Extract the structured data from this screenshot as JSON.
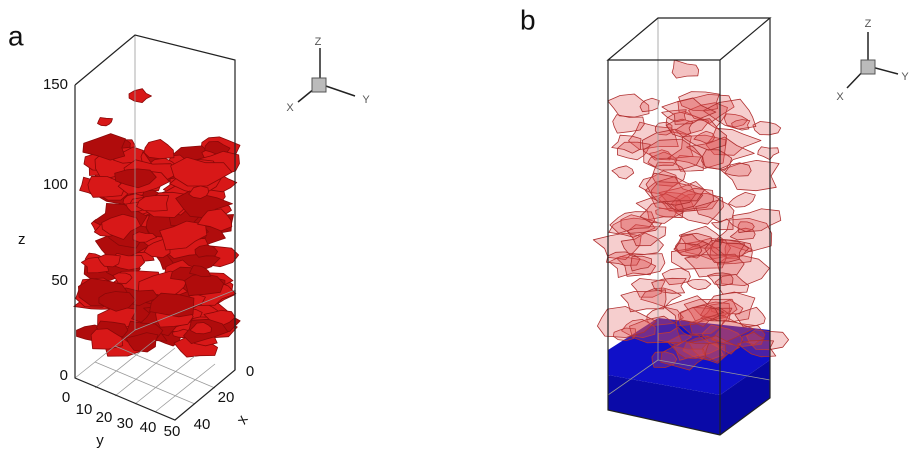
{
  "panels": [
    {
      "label": "a",
      "z_axis": {
        "title": "z",
        "ticks": [
          150,
          100,
          50,
          0
        ]
      },
      "y_axis": {
        "title": "y",
        "ticks": [
          0,
          10,
          20,
          30,
          40,
          50
        ]
      },
      "x_axis": {
        "title": "x",
        "ticks": [
          0,
          20,
          40
        ]
      },
      "triad": {
        "z": "Z",
        "y": "Y",
        "x": "X"
      }
    },
    {
      "label": "b",
      "triad": {
        "z": "Z",
        "y": "Y",
        "x": "X"
      }
    }
  ]
}
